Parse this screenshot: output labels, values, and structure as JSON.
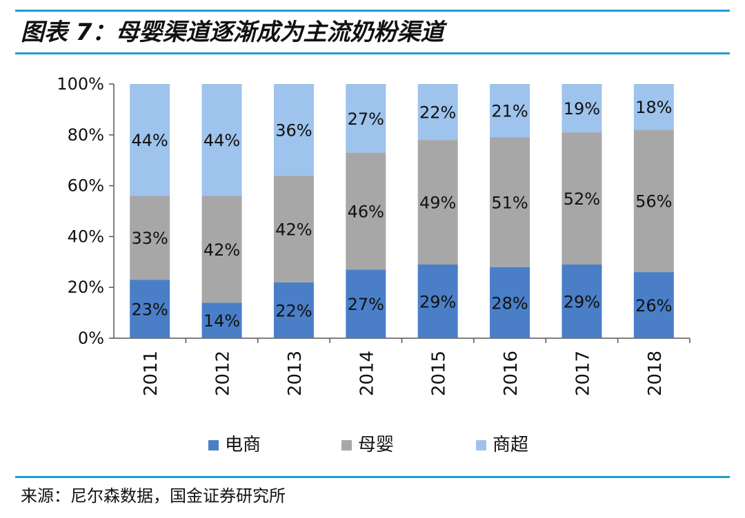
{
  "title": "图表 7：母婴渠道逐渐成为主流奶粉渠道",
  "source": "来源：尼尔森数据，国金证券研究所",
  "chart_data": {
    "type": "bar",
    "stacked": true,
    "percent": true,
    "categories": [
      "2011",
      "2012",
      "2013",
      "2014",
      "2015",
      "2016",
      "2017",
      "2018"
    ],
    "series": [
      {
        "name": "电商",
        "color": "#4a7fc8",
        "values": [
          23,
          14,
          22,
          27,
          29,
          28,
          29,
          26
        ]
      },
      {
        "name": "母婴",
        "color": "#a7a7a7",
        "values": [
          33,
          42,
          42,
          46,
          49,
          51,
          52,
          56
        ]
      },
      {
        "name": "商超",
        "color": "#9ec3ec",
        "values": [
          44,
          44,
          36,
          27,
          22,
          21,
          19,
          18
        ]
      }
    ],
    "y_ticks": [
      "0%",
      "20%",
      "40%",
      "60%",
      "80%",
      "100%"
    ],
    "ylim": [
      0,
      100
    ],
    "legend_position": "bottom",
    "grid": false
  }
}
